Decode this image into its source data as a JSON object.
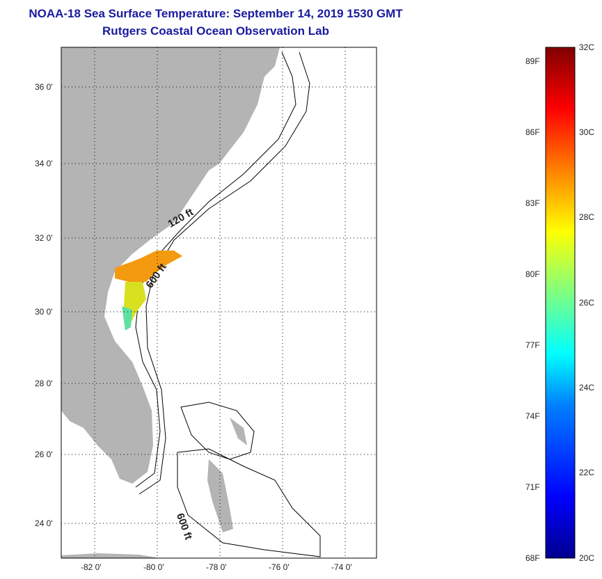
{
  "title": {
    "line1": "NOAA-18 Sea Surface Temperature:  September 14, 2019 1530 GMT",
    "line2": "Rutgers Coastal Ocean Observation Lab"
  },
  "map": {
    "lat_labels": [
      "36 0'",
      "34 0'",
      "32 0'",
      "30 0'",
      "28 0'",
      "26 0'",
      "24 0'"
    ],
    "lon_labels": [
      "-82 0'",
      "-80 0'",
      "-78 0'",
      "-76 0'",
      "-74 0'"
    ],
    "contour_labels": [
      "120 ft",
      "600 ft",
      "600 ft"
    ],
    "land_color": "#b4b4b4"
  },
  "colorbar": {
    "celsius_labels": [
      "32C",
      "30C",
      "28C",
      "26C",
      "24C",
      "22C",
      "20C"
    ],
    "fahrenheit_labels": [
      "89F",
      "86F",
      "83F",
      "80F",
      "77F",
      "74F",
      "71F",
      "68F"
    ],
    "range_c": [
      20,
      32
    ],
    "colors": [
      "#00008f",
      "#0000ff",
      "#0080ff",
      "#00ffff",
      "#80ff80",
      "#ffff00",
      "#ff8000",
      "#ff0000",
      "#800000"
    ]
  }
}
